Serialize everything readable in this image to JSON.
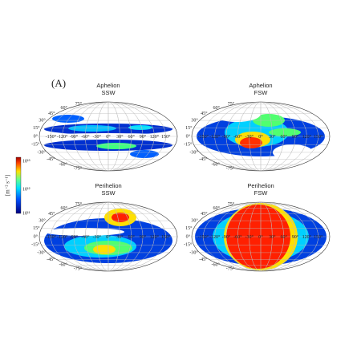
{
  "panel_label": "(A)",
  "panels": [
    {
      "line1": "Aphelion",
      "line2": "SSW"
    },
    {
      "line1": "Aphelion",
      "line2": "FSW"
    },
    {
      "line1": "Perihelion",
      "line2": "SSW"
    },
    {
      "line1": "Perihelion",
      "line2": "FSW"
    }
  ],
  "colorbar": {
    "label": "[m⁻² s⁻¹]",
    "ticks": [
      "10¹³",
      "10¹²",
      "10¹¹"
    ]
  },
  "lat_labels": [
    "75°",
    "60°",
    "45°",
    "30°",
    "15°",
    "0°",
    "-15°",
    "-30°",
    "-45°",
    "-60°",
    "-75°"
  ],
  "lon_labels": [
    "-150°",
    "-120°",
    "-90°",
    "-60°",
    "-30°",
    "0°",
    "30°",
    "60°",
    "90°",
    "120°",
    "150°"
  ]
}
